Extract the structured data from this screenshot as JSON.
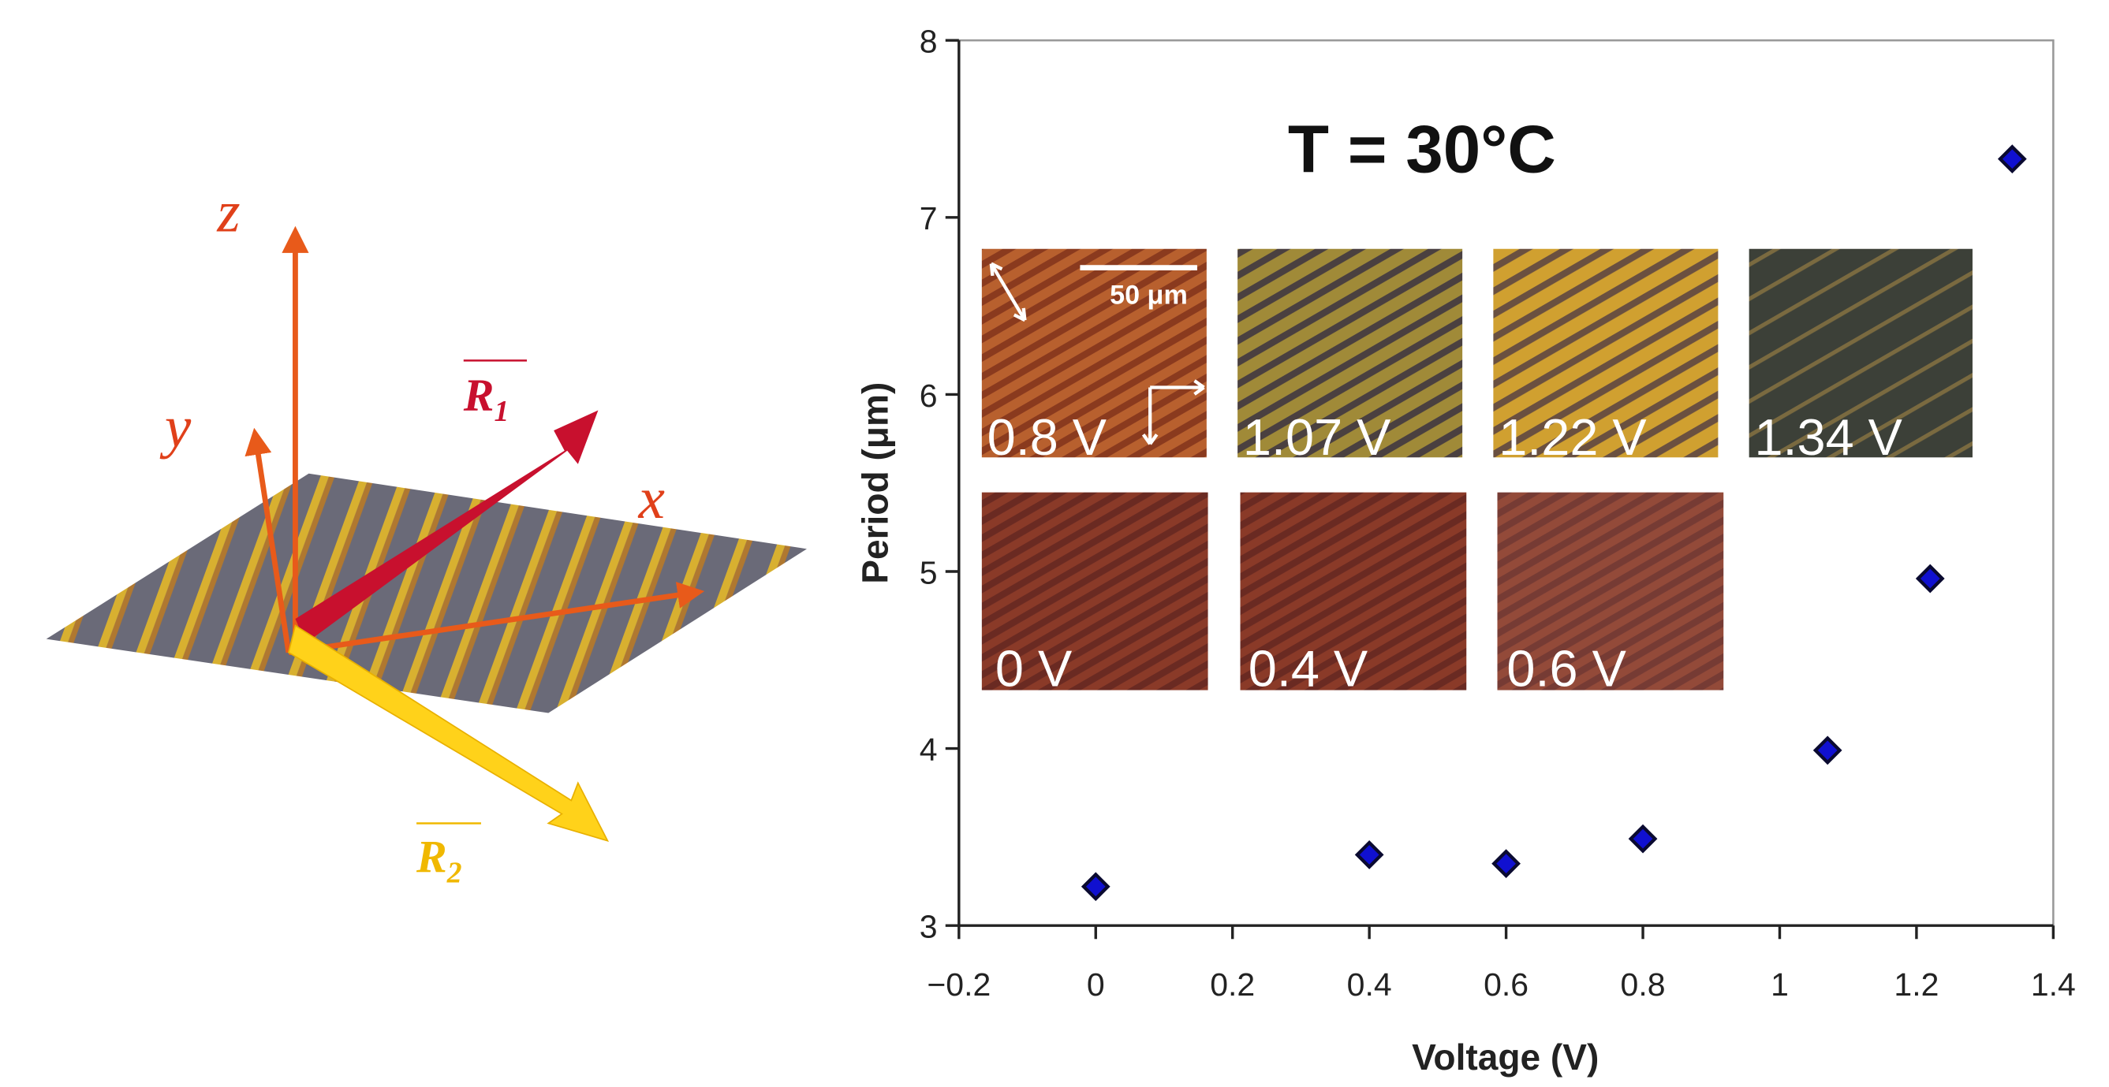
{
  "diagram": {
    "labels": {
      "z": "z",
      "y": "y",
      "x": "x",
      "r1": {
        "letter": "R",
        "subscript": "1"
      },
      "r2": {
        "letter": "R",
        "subscript": "2"
      }
    }
  },
  "chart_data": {
    "type": "scatter",
    "annotation": "T = 30°C",
    "x_label": "Voltage (V)",
    "y_label": "Period (μm)",
    "x": [
      0,
      0.4,
      0.6,
      0.8,
      1.07,
      1.22,
      1.34
    ],
    "values": [
      3.22,
      3.4,
      3.35,
      3.49,
      3.99,
      4.96,
      7.33
    ],
    "color": "#1010d0",
    "xlim": [
      -0.2,
      1.4
    ],
    "xticks": [
      {
        "value": -0.2,
        "label": "−0.2"
      },
      0,
      0.2,
      0.4,
      0.6,
      0.8,
      1,
      1.2,
      1.4
    ],
    "ylim": [
      3,
      8
    ],
    "yticks": [
      3,
      4,
      5,
      6,
      7,
      8
    ],
    "grid": false,
    "insets": {
      "scale_bar": "50 μm",
      "labels": [
        "0.8 V",
        "1.07 V",
        "1.22 V",
        "1.34 V",
        "0 V",
        "0.4 V",
        "0.6 V"
      ]
    }
  }
}
